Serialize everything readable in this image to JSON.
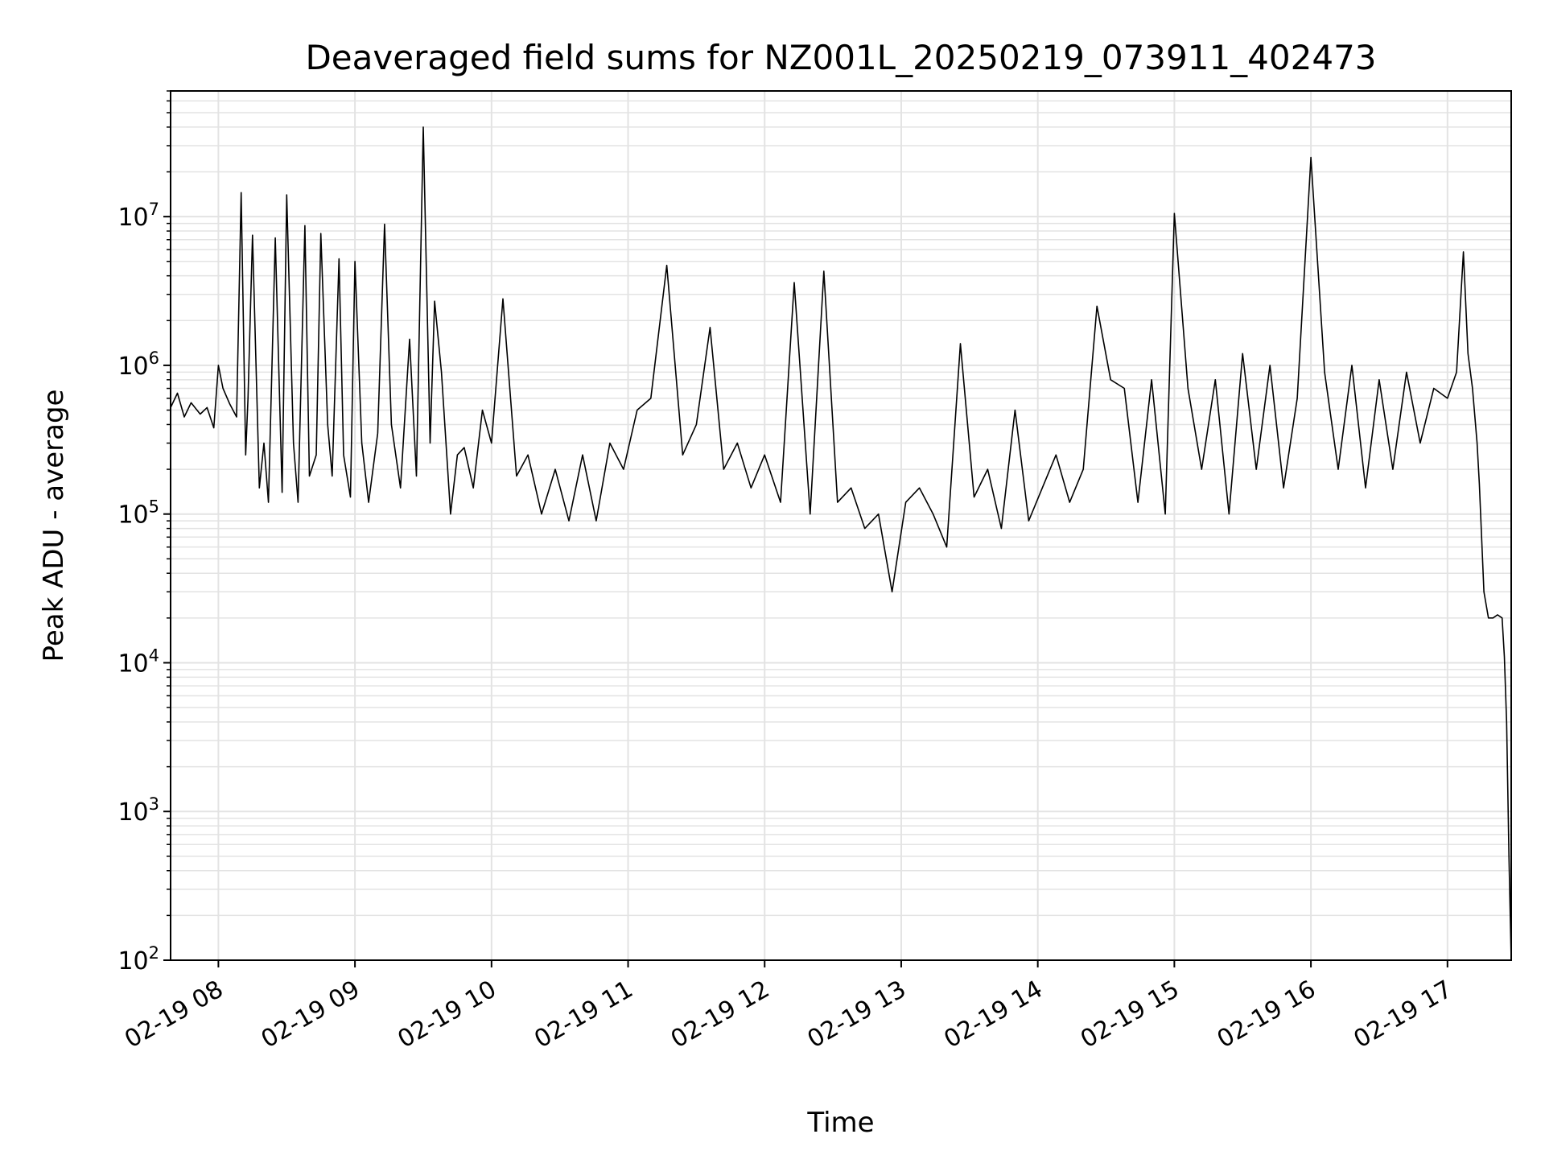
{
  "chart_data": {
    "type": "line",
    "title": "Deaveraged field sums for NZ001L_20250219_073911_402473",
    "xlabel": "Time",
    "ylabel": "Peak ADU - average",
    "yscale": "log",
    "grid": true,
    "grid_minor": true,
    "line_color": "#000000",
    "grid_color": "#e3e3e3",
    "xlim": [
      "2025-02-19 07:39",
      "2025-02-19 17:28"
    ],
    "ylim": [
      100,
      70000000
    ],
    "x_ticks": [
      {
        "time": "2025-02-19 08:00",
        "label": "02-19 08"
      },
      {
        "time": "2025-02-19 09:00",
        "label": "02-19 09"
      },
      {
        "time": "2025-02-19 10:00",
        "label": "02-19 10"
      },
      {
        "time": "2025-02-19 11:00",
        "label": "02-19 11"
      },
      {
        "time": "2025-02-19 12:00",
        "label": "02-19 12"
      },
      {
        "time": "2025-02-19 13:00",
        "label": "02-19 13"
      },
      {
        "time": "2025-02-19 14:00",
        "label": "02-19 14"
      },
      {
        "time": "2025-02-19 15:00",
        "label": "02-19 15"
      },
      {
        "time": "2025-02-19 16:00",
        "label": "02-19 16"
      },
      {
        "time": "2025-02-19 17:00",
        "label": "02-19 17"
      }
    ],
    "y_ticks": [
      {
        "value": 100,
        "base": "10",
        "exp": "2"
      },
      {
        "value": 1000,
        "base": "10",
        "exp": "3"
      },
      {
        "value": 10000,
        "base": "10",
        "exp": "4"
      },
      {
        "value": 100000,
        "base": "10",
        "exp": "5"
      },
      {
        "value": 1000000,
        "base": "10",
        "exp": "6"
      },
      {
        "value": 10000000,
        "base": "10",
        "exp": "7"
      }
    ],
    "series": [
      {
        "x": [
          "2025-02-19 07:39",
          "2025-02-19 07:42",
          "2025-02-19 07:45",
          "2025-02-19 07:48",
          "2025-02-19 07:52",
          "2025-02-19 07:55",
          "2025-02-19 07:58",
          "2025-02-19 08:00",
          "2025-02-19 08:02",
          "2025-02-19 08:05",
          "2025-02-19 08:08",
          "2025-02-19 08:10",
          "2025-02-19 08:12",
          "2025-02-19 08:13",
          "2025-02-19 08:15",
          "2025-02-19 08:18",
          "2025-02-19 08:20",
          "2025-02-19 08:22",
          "2025-02-19 08:25",
          "2025-02-19 08:28",
          "2025-02-19 08:30",
          "2025-02-19 08:33",
          "2025-02-19 08:35",
          "2025-02-19 08:38",
          "2025-02-19 08:40",
          "2025-02-19 08:43",
          "2025-02-19 08:45",
          "2025-02-19 08:48",
          "2025-02-19 08:50",
          "2025-02-19 08:53",
          "2025-02-19 08:55",
          "2025-02-19 08:58",
          "2025-02-19 09:00",
          "2025-02-19 09:03",
          "2025-02-19 09:06",
          "2025-02-19 09:10",
          "2025-02-19 09:13",
          "2025-02-19 09:16",
          "2025-02-19 09:20",
          "2025-02-19 09:24",
          "2025-02-19 09:27",
          "2025-02-19 09:30",
          "2025-02-19 09:33",
          "2025-02-19 09:35",
          "2025-02-19 09:38",
          "2025-02-19 09:42",
          "2025-02-19 09:45",
          "2025-02-19 09:48",
          "2025-02-19 09:52",
          "2025-02-19 09:56",
          "2025-02-19 10:00",
          "2025-02-19 10:05",
          "2025-02-19 10:11",
          "2025-02-19 10:16",
          "2025-02-19 10:22",
          "2025-02-19 10:28",
          "2025-02-19 10:34",
          "2025-02-19 10:40",
          "2025-02-19 10:46",
          "2025-02-19 10:52",
          "2025-02-19 10:58",
          "2025-02-19 11:04",
          "2025-02-19 11:10",
          "2025-02-19 11:17",
          "2025-02-19 11:24",
          "2025-02-19 11:30",
          "2025-02-19 11:36",
          "2025-02-19 11:42",
          "2025-02-19 11:48",
          "2025-02-19 11:54",
          "2025-02-19 12:00",
          "2025-02-19 12:07",
          "2025-02-19 12:13",
          "2025-02-19 12:20",
          "2025-02-19 12:26",
          "2025-02-19 12:32",
          "2025-02-19 12:38",
          "2025-02-19 12:44",
          "2025-02-19 12:50",
          "2025-02-19 12:56",
          "2025-02-19 13:02",
          "2025-02-19 13:08",
          "2025-02-19 13:14",
          "2025-02-19 13:20",
          "2025-02-19 13:26",
          "2025-02-19 13:32",
          "2025-02-19 13:38",
          "2025-02-19 13:44",
          "2025-02-19 13:50",
          "2025-02-19 13:56",
          "2025-02-19 14:02",
          "2025-02-19 14:08",
          "2025-02-19 14:14",
          "2025-02-19 14:20",
          "2025-02-19 14:26",
          "2025-02-19 14:32",
          "2025-02-19 14:38",
          "2025-02-19 14:44",
          "2025-02-19 14:50",
          "2025-02-19 14:56",
          "2025-02-19 15:00",
          "2025-02-19 15:06",
          "2025-02-19 15:12",
          "2025-02-19 15:18",
          "2025-02-19 15:24",
          "2025-02-19 15:30",
          "2025-02-19 15:36",
          "2025-02-19 15:42",
          "2025-02-19 15:48",
          "2025-02-19 15:54",
          "2025-02-19 16:00",
          "2025-02-19 16:06",
          "2025-02-19 16:12",
          "2025-02-19 16:18",
          "2025-02-19 16:24",
          "2025-02-19 16:30",
          "2025-02-19 16:36",
          "2025-02-19 16:42",
          "2025-02-19 16:48",
          "2025-02-19 16:54",
          "2025-02-19 17:00",
          "2025-02-19 17:04",
          "2025-02-19 17:07",
          "2025-02-19 17:09",
          "2025-02-19 17:11",
          "2025-02-19 17:13",
          "2025-02-19 17:14",
          "2025-02-19 17:16",
          "2025-02-19 17:18",
          "2025-02-19 17:20",
          "2025-02-19 17:22",
          "2025-02-19 17:24",
          "2025-02-19 17:25",
          "2025-02-19 17:26",
          "2025-02-19 17:27",
          "2025-02-19 17:28"
        ],
        "y": [
          520000,
          650000,
          450000,
          560000,
          470000,
          520000,
          380000,
          1000000,
          700000,
          550000,
          450000,
          14500000,
          250000,
          600000,
          7500000,
          150000,
          300000,
          120000,
          7200000,
          140000,
          14000000,
          300000,
          120000,
          8700000,
          180000,
          250000,
          7700000,
          400000,
          180000,
          5200000,
          250000,
          130000,
          5000000,
          300000,
          120000,
          350000,
          8900000,
          400000,
          150000,
          1500000,
          180000,
          40000000,
          300000,
          2700000,
          900000,
          100000,
          250000,
          280000,
          150000,
          500000,
          300000,
          2800000,
          180000,
          250000,
          100000,
          200000,
          90000,
          250000,
          90000,
          300000,
          200000,
          500000,
          600000,
          4700000,
          250000,
          400000,
          1800000,
          200000,
          300000,
          150000,
          250000,
          120000,
          3600000,
          100000,
          4300000,
          120000,
          150000,
          80000,
          100000,
          30000,
          120000,
          150000,
          100000,
          60000,
          1400000,
          130000,
          200000,
          80000,
          500000,
          90000,
          150000,
          250000,
          120000,
          200000,
          2500000,
          800000,
          700000,
          120000,
          800000,
          100000,
          10500000,
          700000,
          200000,
          800000,
          100000,
          1200000,
          200000,
          1000000,
          150000,
          600000,
          25000000,
          900000,
          200000,
          1000000,
          150000,
          800000,
          200000,
          900000,
          300000,
          700000,
          600000,
          900000,
          5800000,
          1200000,
          700000,
          300000,
          160000,
          30000,
          20000,
          20000,
          21000,
          20000,
          11000,
          4000,
          500,
          100
        ]
      }
    ]
  }
}
